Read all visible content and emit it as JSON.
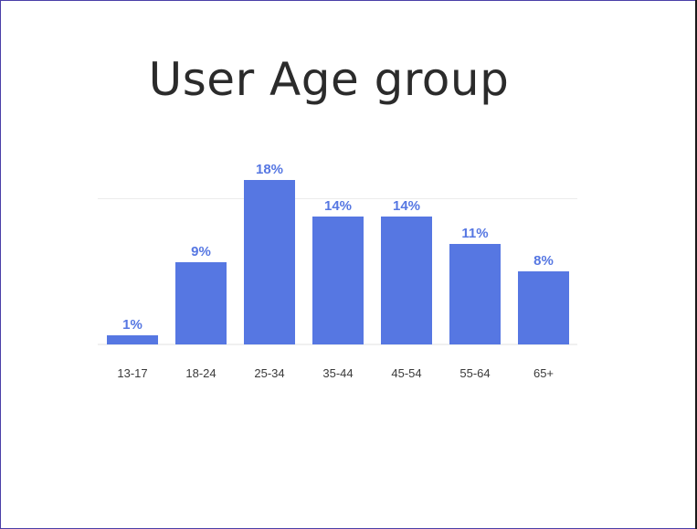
{
  "slide": {
    "title": "User Age group"
  },
  "chart_data": {
    "type": "bar",
    "title": "User Age group",
    "xlabel": "",
    "ylabel": "",
    "categories": [
      "13-17",
      "18-24",
      "25-34",
      "35-44",
      "45-54",
      "55-64",
      "65+"
    ],
    "values": [
      1,
      9,
      18,
      14,
      14,
      11,
      8
    ],
    "value_labels": [
      "1%",
      "9%",
      "18%",
      "14%",
      "14%",
      "11%",
      "8%"
    ],
    "ylim": [
      0,
      20
    ],
    "gridline_values": [
      0,
      16
    ],
    "grid": true,
    "legend": "none",
    "colors": {
      "bar": "#5677e2",
      "value_label": "#5677e2",
      "tick_label": "#3a3a3a",
      "gridline": "#ececec",
      "baseline": "#e2e2e2"
    }
  }
}
